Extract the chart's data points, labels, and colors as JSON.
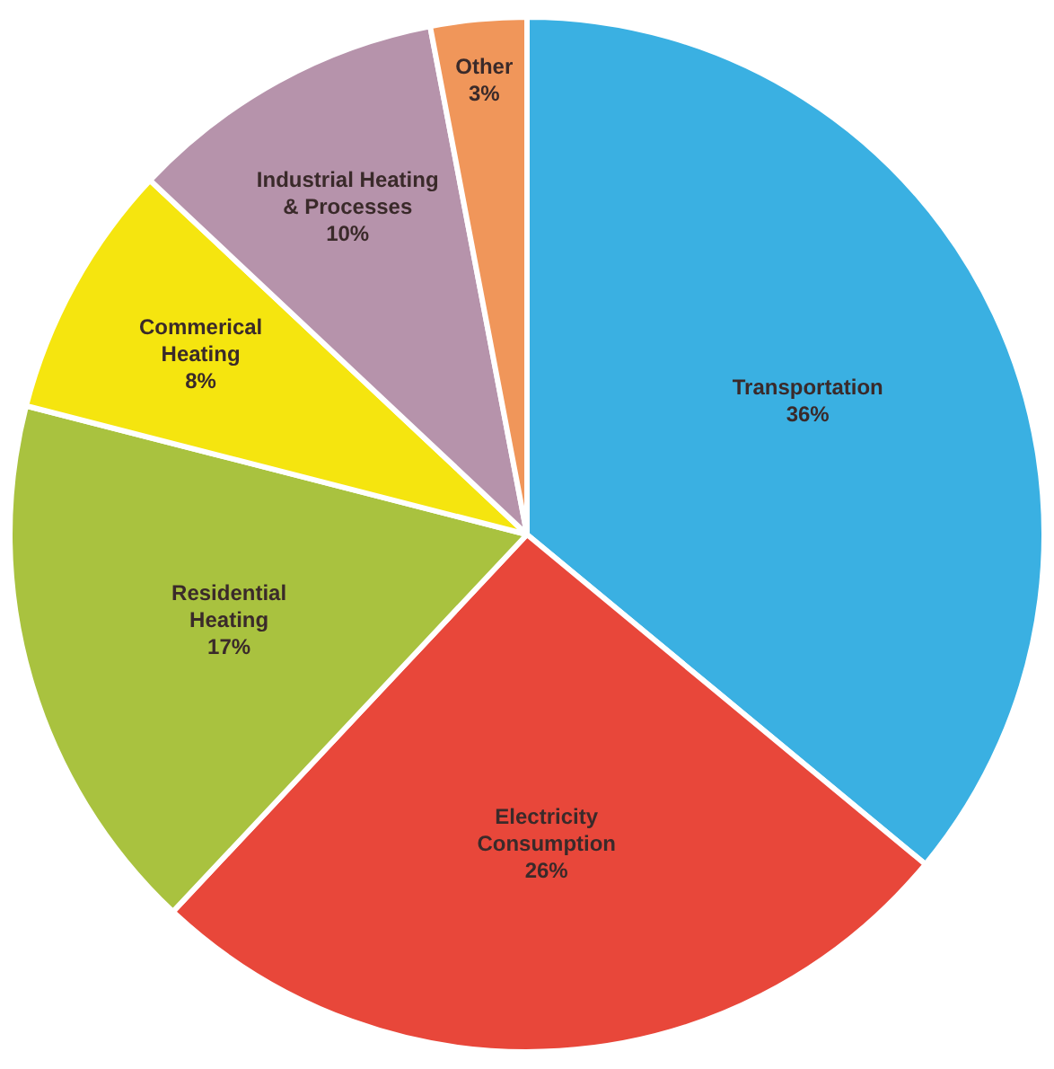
{
  "chart_data": {
    "type": "pie",
    "categories": [
      "Transportation",
      "Electricity Consumption",
      "Residential Heating",
      "Commerical Heating",
      "Industrial Heating & Processes",
      "Other"
    ],
    "values": [
      36,
      26,
      17,
      8,
      10,
      3
    ],
    "value_labels": [
      "36%",
      "26%",
      "17%",
      "8%",
      "10%",
      "3%"
    ],
    "colors": [
      "#3ab0e2",
      "#e8473a",
      "#a9c23f",
      "#f5e50f",
      "#b693ab",
      "#f0965a"
    ],
    "legend": false
  }
}
